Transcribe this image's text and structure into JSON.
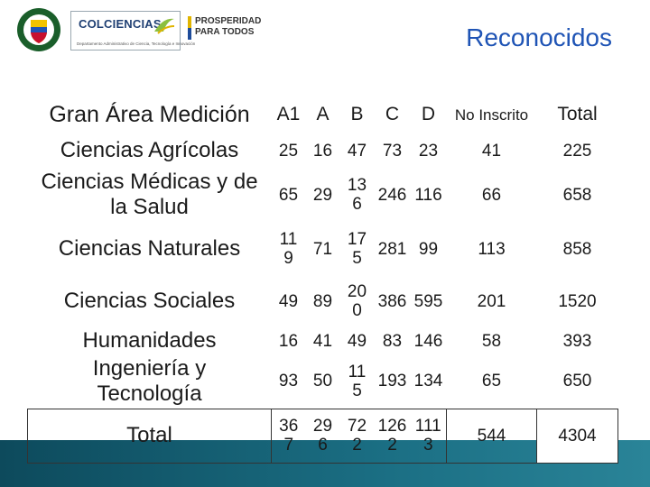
{
  "header": {
    "title": "Reconocidos",
    "logos": {
      "shield_text": "REPUBLICA DE COLOMBIA",
      "colciencias": "COLCIENCIAS",
      "colciencias_sub": "Departamento Administrativo de Ciencia, Tecnología e Innovación",
      "prosperidad_line1": "PROSPERIDAD",
      "prosperidad_line2": "PARA TODOS"
    }
  },
  "table": {
    "header": {
      "area": "Gran Área Medición",
      "a1": "A1",
      "a": "A",
      "b": "B",
      "c": "C",
      "d": "D",
      "no_inscrito": "No Inscrito",
      "total": "Total"
    },
    "rows": [
      {
        "name": "Ciencias Agrícolas",
        "a1": "25",
        "a": "16",
        "b": "47",
        "c": "73",
        "d": "23",
        "no_inscrito": "41",
        "total": "225"
      },
      {
        "name": "Ciencias Médicas y de la Salud",
        "a1": "65",
        "a": "29",
        "b": "136",
        "c": "246",
        "d": "116",
        "no_inscrito": "66",
        "total": "658"
      },
      {
        "name": "Ciencias Naturales",
        "a1": "119",
        "a": "71",
        "b": "175",
        "c": "281",
        "d": "99",
        "no_inscrito": "113",
        "total": "858"
      },
      {
        "name": "Ciencias Sociales",
        "a1": "49",
        "a": "89",
        "b": "200",
        "c": "386",
        "d": "595",
        "no_inscrito": "201",
        "total": "1520"
      },
      {
        "name": "Humanidades",
        "a1": "16",
        "a": "41",
        "b": "49",
        "c": "83",
        "d": "146",
        "no_inscrito": "58",
        "total": "393"
      },
      {
        "name": "Ingeniería y Tecnología",
        "a1": "93",
        "a": "50",
        "b": "115",
        "c": "193",
        "d": "134",
        "no_inscrito": "65",
        "total": "650"
      }
    ],
    "total_row": {
      "name": "Total",
      "a1": "367",
      "a": "296",
      "b": "722",
      "c": "1262",
      "d": "1113",
      "no_inscrito": "544",
      "total": "4304"
    }
  },
  "colors": {
    "title": "#1f54b5",
    "band": "#145a6e"
  }
}
